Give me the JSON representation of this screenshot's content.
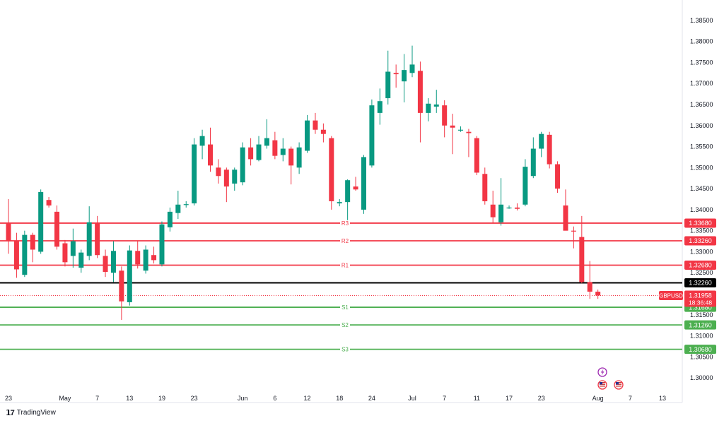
{
  "chart_data": {
    "type": "candlestick",
    "symbol": "GBPUSD",
    "ylim": [
      1.2965,
      1.3885
    ],
    "y_ticks": [
      1.385,
      1.38,
      1.375,
      1.37,
      1.365,
      1.36,
      1.355,
      1.35,
      1.345,
      1.34,
      1.335,
      1.33,
      1.325,
      1.315,
      1.31,
      1.305,
      1.3
    ],
    "x_ticks": [
      {
        "label": "23",
        "i": 0
      },
      {
        "label": "May",
        "i": 7
      },
      {
        "label": "7",
        "i": 11
      },
      {
        "label": "13",
        "i": 15
      },
      {
        "label": "19",
        "i": 19
      },
      {
        "label": "23",
        "i": 23
      },
      {
        "label": "Jun",
        "i": 29
      },
      {
        "label": "6",
        "i": 33
      },
      {
        "label": "12",
        "i": 37
      },
      {
        "label": "18",
        "i": 41
      },
      {
        "label": "24",
        "i": 45
      },
      {
        "label": "Jul",
        "i": 50
      },
      {
        "label": "7",
        "i": 54
      },
      {
        "label": "11",
        "i": 58
      },
      {
        "label": "17",
        "i": 62
      },
      {
        "label": "23",
        "i": 66
      },
      {
        "label": "Aug",
        "i": 73
      },
      {
        "label": "7",
        "i": 77
      },
      {
        "label": "13",
        "i": 81
      }
    ],
    "levels": [
      {
        "name": "R3",
        "value": 1.3368,
        "value_label": "1.33680",
        "color": "#f23645"
      },
      {
        "name": "R2",
        "value": 1.3326,
        "value_label": "1.33260",
        "color": "#f23645"
      },
      {
        "name": "R1",
        "value": 1.3268,
        "value_label": "1.32680",
        "color": "#f23645"
      },
      {
        "name": "",
        "value": 1.3226,
        "value_label": "1.32260",
        "color": "#000000"
      },
      {
        "name": "S1",
        "value": 1.3168,
        "value_label": "1.31680",
        "color": "#4caf50"
      },
      {
        "name": "S2",
        "value": 1.3126,
        "value_label": "1.31260",
        "color": "#4caf50"
      },
      {
        "name": "S3",
        "value": 1.3068,
        "value_label": "1.30680",
        "color": "#4caf50"
      }
    ],
    "current_price": {
      "symbol": "GBPUSD",
      "value": 1.31958,
      "value_label": "1.31958",
      "countdown": "18:36:48",
      "color": "#f23645"
    },
    "candles": [
      {
        "o": 1.3368,
        "h": 1.3425,
        "l": 1.3295,
        "c": 1.3325
      },
      {
        "o": 1.3325,
        "h": 1.3345,
        "l": 1.3238,
        "c": 1.3258
      },
      {
        "o": 1.3245,
        "h": 1.335,
        "l": 1.324,
        "c": 1.334
      },
      {
        "o": 1.334,
        "h": 1.3345,
        "l": 1.3275,
        "c": 1.3305
      },
      {
        "o": 1.33,
        "h": 1.3448,
        "l": 1.3295,
        "c": 1.3442
      },
      {
        "o": 1.3423,
        "h": 1.343,
        "l": 1.3405,
        "c": 1.341
      },
      {
        "o": 1.3395,
        "h": 1.341,
        "l": 1.3305,
        "c": 1.3312
      },
      {
        "o": 1.332,
        "h": 1.3328,
        "l": 1.3265,
        "c": 1.3275
      },
      {
        "o": 1.329,
        "h": 1.3355,
        "l": 1.3262,
        "c": 1.3325
      },
      {
        "o": 1.3262,
        "h": 1.3305,
        "l": 1.325,
        "c": 1.3298
      },
      {
        "o": 1.329,
        "h": 1.3408,
        "l": 1.328,
        "c": 1.337
      },
      {
        "o": 1.3368,
        "h": 1.3385,
        "l": 1.3285,
        "c": 1.3292
      },
      {
        "o": 1.329,
        "h": 1.3305,
        "l": 1.324,
        "c": 1.3252
      },
      {
        "o": 1.325,
        "h": 1.3325,
        "l": 1.3228,
        "c": 1.3302
      },
      {
        "o": 1.3255,
        "h": 1.3265,
        "l": 1.3138,
        "c": 1.3182
      },
      {
        "o": 1.318,
        "h": 1.3315,
        "l": 1.3172,
        "c": 1.3303
      },
      {
        "o": 1.3302,
        "h": 1.3325,
        "l": 1.326,
        "c": 1.327
      },
      {
        "o": 1.3255,
        "h": 1.3315,
        "l": 1.3248,
        "c": 1.3305
      },
      {
        "o": 1.3292,
        "h": 1.3312,
        "l": 1.3272,
        "c": 1.328
      },
      {
        "o": 1.327,
        "h": 1.3372,
        "l": 1.3265,
        "c": 1.3365
      },
      {
        "o": 1.3358,
        "h": 1.3405,
        "l": 1.3348,
        "c": 1.3395
      },
      {
        "o": 1.3392,
        "h": 1.3445,
        "l": 1.3378,
        "c": 1.3412
      },
      {
        "o": 1.3412,
        "h": 1.342,
        "l": 1.3405,
        "c": 1.3413
      },
      {
        "o": 1.3415,
        "h": 1.357,
        "l": 1.341,
        "c": 1.3555
      },
      {
        "o": 1.3552,
        "h": 1.359,
        "l": 1.352,
        "c": 1.3575
      },
      {
        "o": 1.3555,
        "h": 1.3595,
        "l": 1.349,
        "c": 1.3505
      },
      {
        "o": 1.35,
        "h": 1.352,
        "l": 1.3462,
        "c": 1.348
      },
      {
        "o": 1.3495,
        "h": 1.35,
        "l": 1.3418,
        "c": 1.3455
      },
      {
        "o": 1.3462,
        "h": 1.35,
        "l": 1.3445,
        "c": 1.3495
      },
      {
        "o": 1.3465,
        "h": 1.356,
        "l": 1.3458,
        "c": 1.3548
      },
      {
        "o": 1.3548,
        "h": 1.357,
        "l": 1.3505,
        "c": 1.352
      },
      {
        "o": 1.3518,
        "h": 1.3575,
        "l": 1.3515,
        "c": 1.3555
      },
      {
        "o": 1.3552,
        "h": 1.3615,
        "l": 1.3545,
        "c": 1.357
      },
      {
        "o": 1.3565,
        "h": 1.3585,
        "l": 1.352,
        "c": 1.3528
      },
      {
        "o": 1.353,
        "h": 1.357,
        "l": 1.3515,
        "c": 1.3545
      },
      {
        "o": 1.3545,
        "h": 1.355,
        "l": 1.346,
        "c": 1.3505
      },
      {
        "o": 1.35,
        "h": 1.356,
        "l": 1.3485,
        "c": 1.3548
      },
      {
        "o": 1.354,
        "h": 1.3625,
        "l": 1.3535,
        "c": 1.3612
      },
      {
        "o": 1.3612,
        "h": 1.363,
        "l": 1.358,
        "c": 1.359
      },
      {
        "o": 1.359,
        "h": 1.3605,
        "l": 1.356,
        "c": 1.358
      },
      {
        "o": 1.357,
        "h": 1.3575,
        "l": 1.34,
        "c": 1.342
      },
      {
        "o": 1.3415,
        "h": 1.3425,
        "l": 1.3408,
        "c": 1.3418
      },
      {
        "o": 1.3418,
        "h": 1.3472,
        "l": 1.3375,
        "c": 1.347
      },
      {
        "o": 1.3455,
        "h": 1.3478,
        "l": 1.3445,
        "c": 1.3448
      },
      {
        "o": 1.34,
        "h": 1.353,
        "l": 1.339,
        "c": 1.3525
      },
      {
        "o": 1.3505,
        "h": 1.3662,
        "l": 1.35,
        "c": 1.3648
      },
      {
        "o": 1.363,
        "h": 1.3688,
        "l": 1.3602,
        "c": 1.3658
      },
      {
        "o": 1.3665,
        "h": 1.3778,
        "l": 1.365,
        "c": 1.3728
      },
      {
        "o": 1.3725,
        "h": 1.3745,
        "l": 1.369,
        "c": 1.3722
      },
      {
        "o": 1.3705,
        "h": 1.377,
        "l": 1.3655,
        "c": 1.3732
      },
      {
        "o": 1.3725,
        "h": 1.379,
        "l": 1.3715,
        "c": 1.3745
      },
      {
        "o": 1.373,
        "h": 1.3752,
        "l": 1.356,
        "c": 1.363
      },
      {
        "o": 1.363,
        "h": 1.3665,
        "l": 1.361,
        "c": 1.3652
      },
      {
        "o": 1.3645,
        "h": 1.3685,
        "l": 1.363,
        "c": 1.365
      },
      {
        "o": 1.3648,
        "h": 1.366,
        "l": 1.3572,
        "c": 1.36
      },
      {
        "o": 1.36,
        "h": 1.3628,
        "l": 1.3532,
        "c": 1.3595
      },
      {
        "o": 1.3588,
        "h": 1.3598,
        "l": 1.3585,
        "c": 1.359
      },
      {
        "o": 1.3585,
        "h": 1.3592,
        "l": 1.3525,
        "c": 1.3582
      },
      {
        "o": 1.357,
        "h": 1.3575,
        "l": 1.3482,
        "c": 1.3488
      },
      {
        "o": 1.3485,
        "h": 1.35,
        "l": 1.3412,
        "c": 1.342
      },
      {
        "o": 1.3412,
        "h": 1.3445,
        "l": 1.3368,
        "c": 1.3382
      },
      {
        "o": 1.337,
        "h": 1.3475,
        "l": 1.3362,
        "c": 1.3412
      },
      {
        "o": 1.3405,
        "h": 1.341,
        "l": 1.3402,
        "c": 1.3405
      },
      {
        "o": 1.3405,
        "h": 1.3415,
        "l": 1.3398,
        "c": 1.3402
      },
      {
        "o": 1.3412,
        "h": 1.352,
        "l": 1.3408,
        "c": 1.3502
      },
      {
        "o": 1.348,
        "h": 1.3572,
        "l": 1.3475,
        "c": 1.3545
      },
      {
        "o": 1.3545,
        "h": 1.3585,
        "l": 1.3525,
        "c": 1.358
      },
      {
        "o": 1.3578,
        "h": 1.3585,
        "l": 1.3498,
        "c": 1.3508
      },
      {
        "o": 1.3508,
        "h": 1.3515,
        "l": 1.344,
        "c": 1.345
      },
      {
        "o": 1.341,
        "h": 1.3448,
        "l": 1.3352,
        "c": 1.335
      },
      {
        "o": 1.335,
        "h": 1.336,
        "l": 1.3308,
        "c": 1.3348
      },
      {
        "o": 1.3335,
        "h": 1.3385,
        "l": 1.3225,
        "c": 1.3228
      },
      {
        "o": 1.3228,
        "h": 1.3278,
        "l": 1.3188,
        "c": 1.3205
      },
      {
        "o": 1.3205,
        "h": 1.321,
        "l": 1.3188,
        "c": 1.3196
      }
    ]
  },
  "branding": {
    "name": "TradingView"
  }
}
